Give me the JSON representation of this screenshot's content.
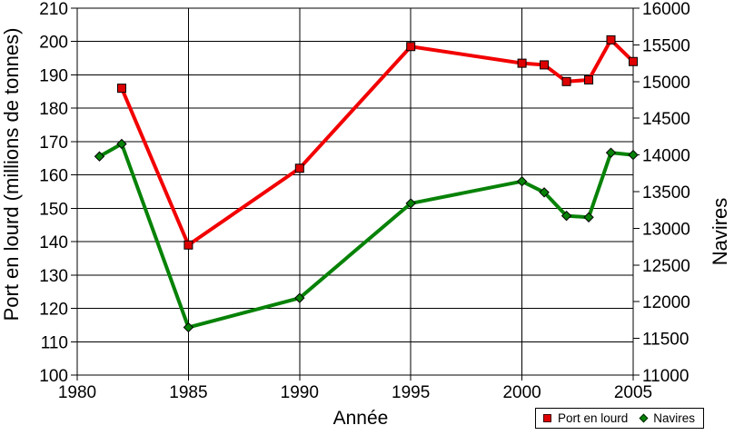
{
  "chart_data": {
    "type": "line",
    "title": "",
    "xlabel": "Année",
    "ylabel_left": "Port en lourd (millions de tonnes)",
    "ylabel_right": "Navires",
    "x_range": [
      1980,
      2005
    ],
    "x_ticks": [
      1980,
      1985,
      1990,
      1995,
      2000,
      2005
    ],
    "y_left_range": [
      100,
      210
    ],
    "y_left_ticks": [
      100,
      110,
      120,
      130,
      140,
      150,
      160,
      170,
      180,
      190,
      200,
      210
    ],
    "y_right_range": [
      11000,
      16000
    ],
    "y_right_ticks": [
      11000,
      11500,
      12000,
      12500,
      13000,
      13500,
      14000,
      14500,
      15000,
      15500,
      16000
    ],
    "grid": true,
    "background": "#FFFFFF",
    "axis_color": "#000000",
    "legend": {
      "position": "bottom-right",
      "items": [
        "Port en lourd",
        "Navires"
      ]
    },
    "series": [
      {
        "name": "Port en lourd",
        "axis": "left",
        "color": "#F20000",
        "marker": "square",
        "marker_fill": "#DE0000",
        "marker_stroke": "#000000",
        "points": [
          [
            1982,
            186
          ],
          [
            1985,
            139
          ],
          [
            1990,
            162
          ],
          [
            1995,
            198.5
          ],
          [
            2000,
            193.5
          ],
          [
            2001,
            193
          ],
          [
            2002,
            188
          ],
          [
            2003,
            188.5
          ],
          [
            2004,
            200.5
          ],
          [
            2005,
            194
          ]
        ]
      },
      {
        "name": "Navires",
        "axis": "right",
        "color": "#078207",
        "marker": "diamond",
        "marker_fill": "#078207",
        "marker_stroke": "#000000",
        "points": [
          [
            1981,
            13980
          ],
          [
            1982,
            14150
          ],
          [
            1985,
            11650
          ],
          [
            1990,
            12050
          ],
          [
            1995,
            13340
          ],
          [
            2000,
            13640
          ],
          [
            2001,
            13490
          ],
          [
            2002,
            13170
          ],
          [
            2003,
            13150
          ],
          [
            2004,
            14030
          ],
          [
            2005,
            14000
          ]
        ]
      }
    ]
  }
}
